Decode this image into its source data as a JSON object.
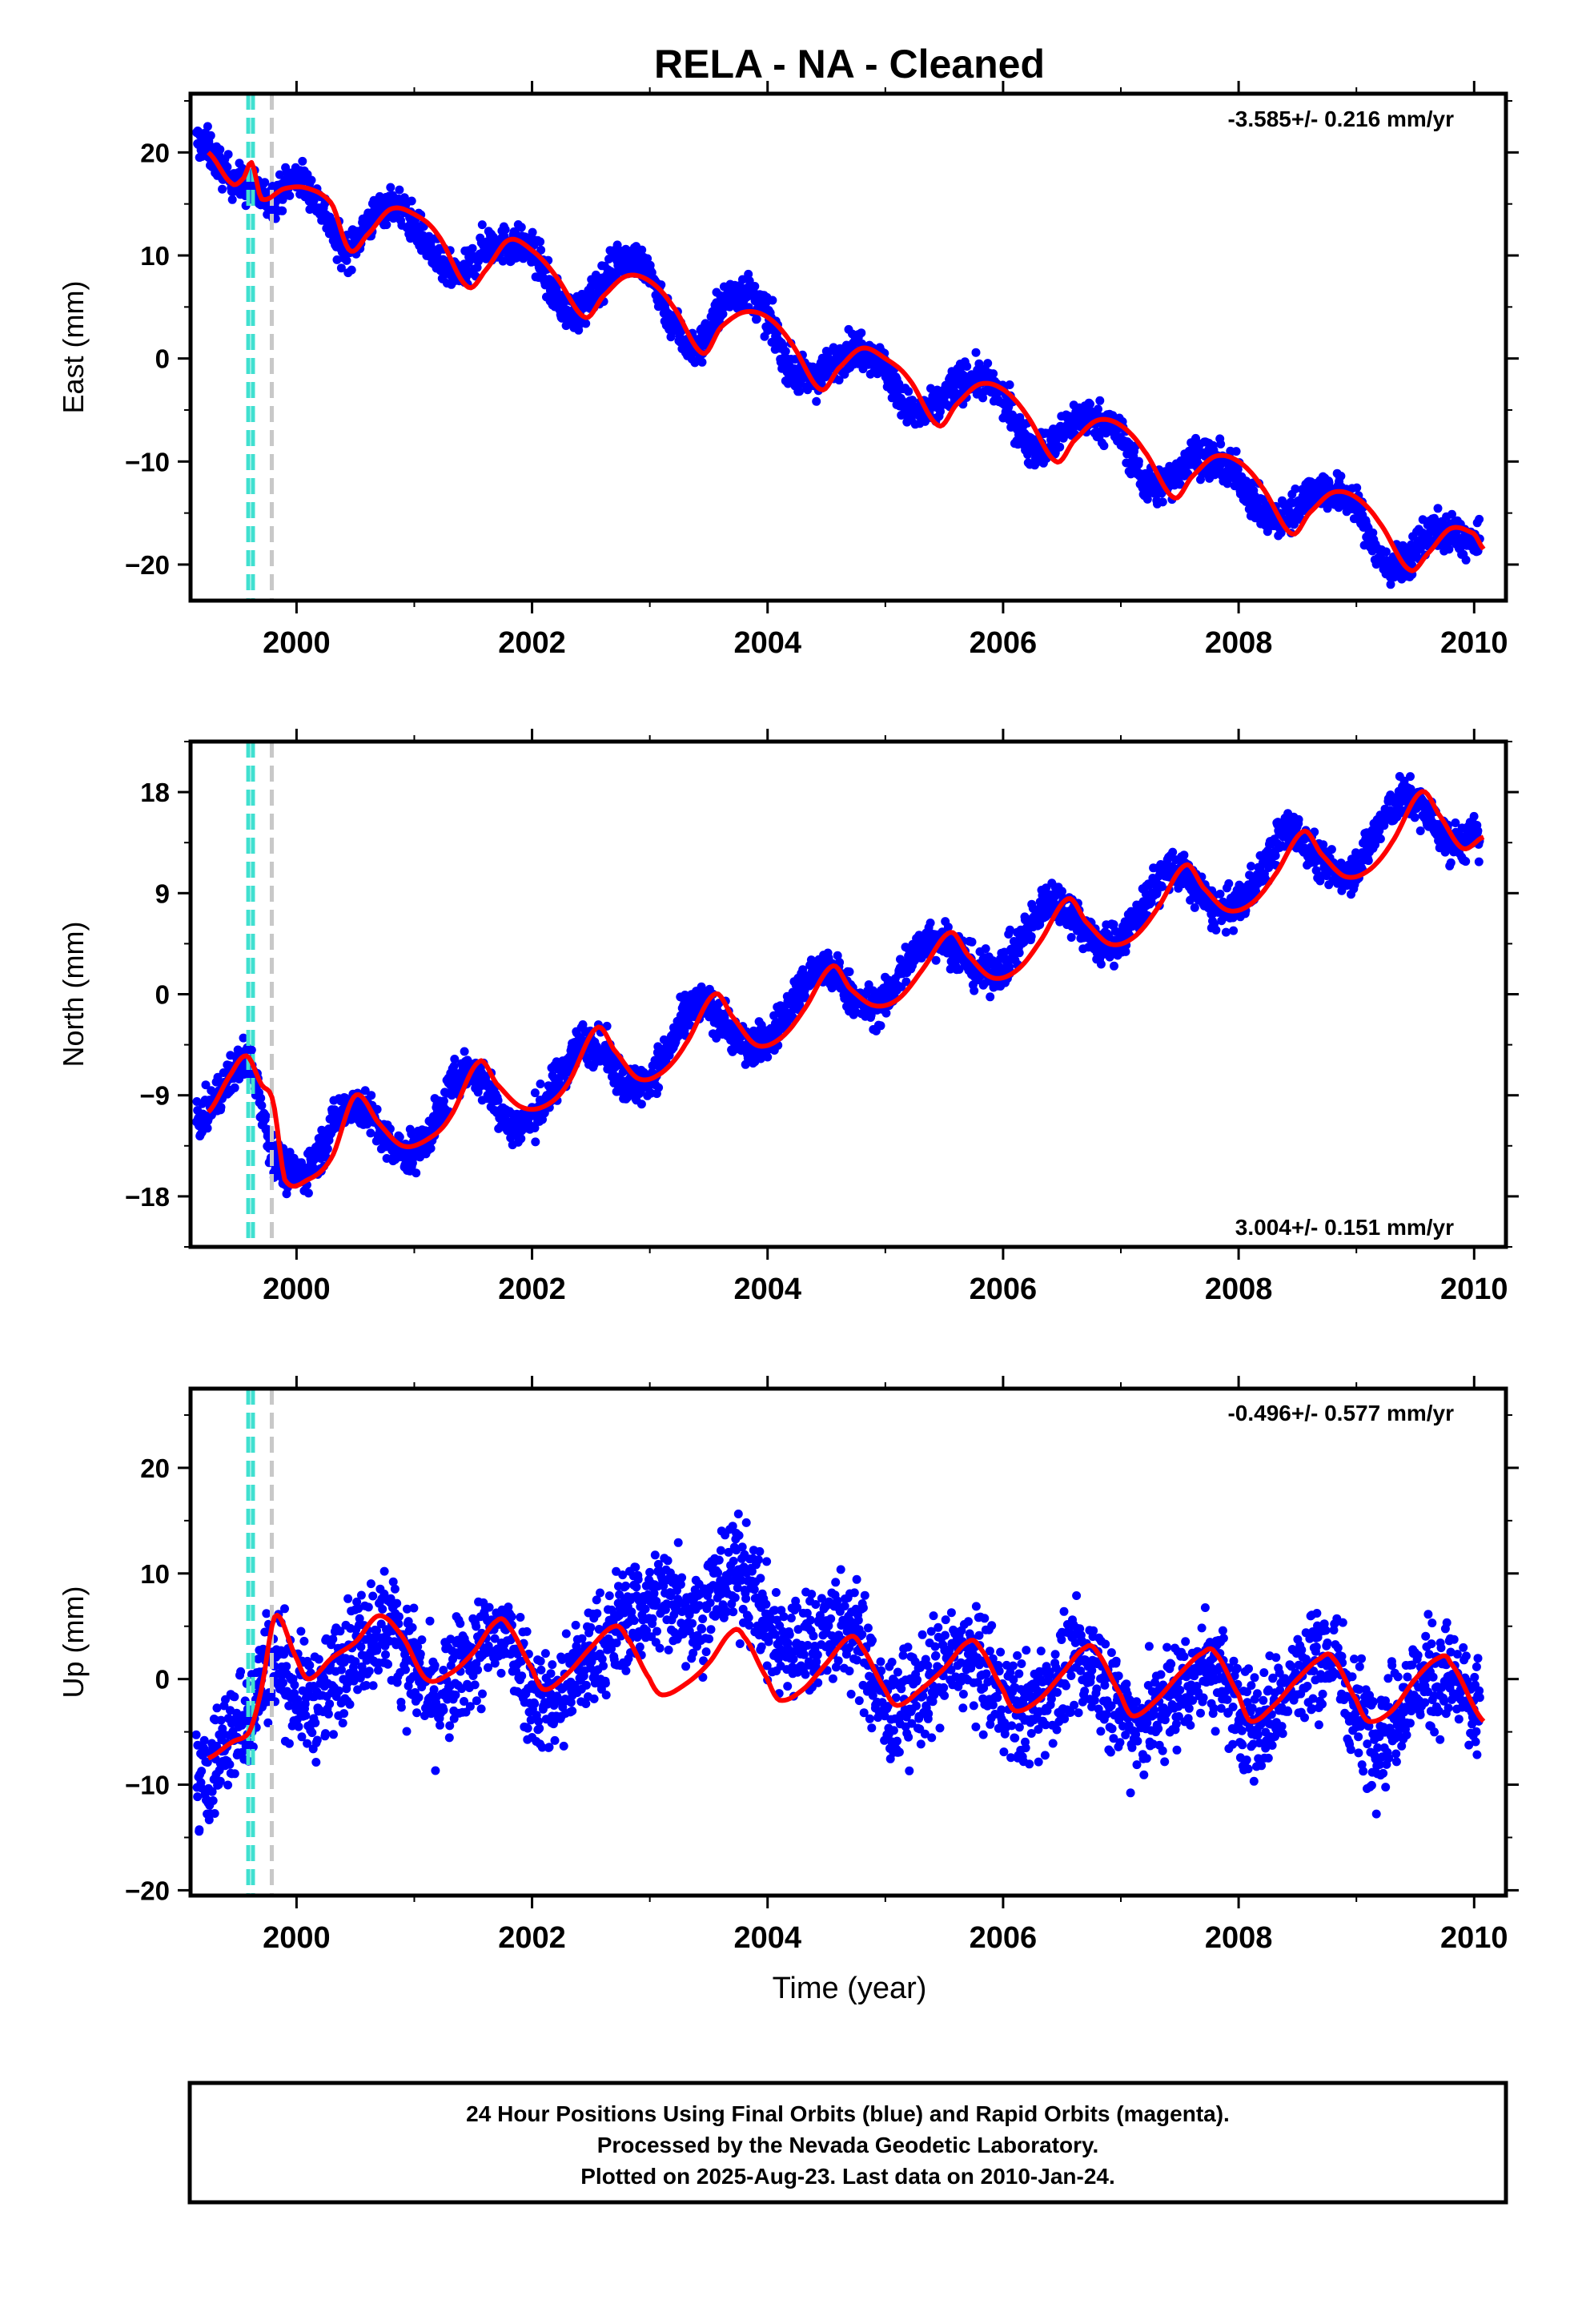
{
  "chart_data": [
    {
      "type": "scatter",
      "title": "RELA  - NA - Cleaned",
      "ylabel": "East (mm)",
      "xlabel": "",
      "rate_label": "-3.585+/- 0.216 mm/yr",
      "xlim": [
        1999.1,
        2010.27
      ],
      "ylim": [
        -23.5,
        25.7
      ],
      "xticks": [
        2000,
        2002,
        2004,
        2006,
        2008,
        2010
      ],
      "yticks": [
        -20,
        -10,
        0,
        10,
        20
      ],
      "equipment_lines": [
        {
          "x": 1999.59,
          "color": "#40e0d0"
        },
        {
          "x": 1999.63,
          "color": "#40e0d0"
        },
        {
          "x": 1999.79,
          "color": "#c8c8c8"
        }
      ],
      "series": [
        {
          "color": "#0000ff",
          "x": [
            1999.2,
            1999.4,
            1999.6,
            1999.8,
            2000.0,
            2000.2,
            2000.4,
            2000.6,
            2000.8,
            2001.0,
            2001.2,
            2001.4,
            2001.6,
            2001.8,
            2002.0,
            2002.2,
            2002.4,
            2002.6,
            2002.8,
            2003.0,
            2003.2,
            2003.4,
            2003.6,
            2003.8,
            2004.0,
            2004.2,
            2004.4,
            2004.6,
            2004.8,
            2005.0,
            2005.2,
            2005.4,
            2005.6,
            2005.8,
            2006.0,
            2006.2,
            2006.4,
            2006.6,
            2006.8,
            2007.0,
            2007.2,
            2007.4,
            2007.6,
            2007.8,
            2008.0,
            2008.2,
            2008.4,
            2008.6,
            2008.8,
            2009.0,
            2009.2,
            2009.4,
            2009.6,
            2009.8,
            2010.0
          ],
          "values": [
            21.0,
            18.0,
            16.5,
            15.5,
            17.5,
            15.0,
            10.5,
            13.0,
            15.0,
            13.0,
            9.5,
            8.0,
            11.0,
            11.0,
            10.5,
            6.0,
            4.5,
            7.5,
            10.0,
            8.0,
            3.5,
            1.0,
            5.0,
            6.5,
            4.0,
            -1.0,
            -2.0,
            0.0,
            1.0,
            -1.0,
            -5.0,
            -5.0,
            -2.5,
            -2.0,
            -4.0,
            -8.0,
            -8.5,
            -6.0,
            -6.0,
            -7.5,
            -12.0,
            -12.0,
            -9.5,
            -10.0,
            -11.5,
            -15.0,
            -15.5,
            -13.0,
            -13.0,
            -14.5,
            -19.5,
            -20.0,
            -17.0,
            -17.0,
            -18.0
          ]
        },
        {
          "color": "#ff0000",
          "x": [
            1999.25,
            1999.45,
            1999.55,
            1999.62,
            1999.7,
            1999.9,
            2000.1,
            2000.3,
            2000.45,
            2000.6,
            2000.8,
            2001.0,
            2001.2,
            2001.45,
            2001.6,
            2001.8,
            2002.0,
            2002.2,
            2002.45,
            2002.6,
            2002.8,
            2003.0,
            2003.2,
            2003.45,
            2003.6,
            2003.8,
            2004.0,
            2004.2,
            2004.45,
            2004.6,
            2004.8,
            2005.0,
            2005.2,
            2005.45,
            2005.6,
            2005.8,
            2006.0,
            2006.2,
            2006.45,
            2006.6,
            2006.8,
            2007.0,
            2007.2,
            2007.45,
            2007.6,
            2007.8,
            2008.0,
            2008.2,
            2008.45,
            2008.6,
            2008.8,
            2009.0,
            2009.2,
            2009.45,
            2009.6,
            2009.8,
            2010.0,
            2010.08
          ],
          "values": [
            20.0,
            17.0,
            17.5,
            19.0,
            15.5,
            16.5,
            16.5,
            15.0,
            10.5,
            12.0,
            14.5,
            14.0,
            12.0,
            7.0,
            8.5,
            11.5,
            10.5,
            8.0,
            4.0,
            6.0,
            8.0,
            7.5,
            5.0,
            0.5,
            3.0,
            4.5,
            4.0,
            1.5,
            -3.0,
            -1.0,
            1.0,
            0.0,
            -2.0,
            -6.5,
            -4.5,
            -2.5,
            -3.0,
            -5.5,
            -10.0,
            -8.0,
            -6.0,
            -6.5,
            -9.0,
            -13.5,
            -11.5,
            -9.5,
            -10.0,
            -12.5,
            -17.0,
            -15.0,
            -13.0,
            -13.5,
            -16.0,
            -20.5,
            -19.0,
            -16.5,
            -17.0,
            -18.5
          ]
        }
      ]
    },
    {
      "type": "scatter",
      "title": "",
      "ylabel": "North (mm)",
      "xlabel": "",
      "rate_label": "3.004+/- 0.151 mm/yr",
      "xlim": [
        1999.1,
        2010.27
      ],
      "ylim": [
        -22.5,
        22.5
      ],
      "xticks": [
        2000,
        2002,
        2004,
        2006,
        2008,
        2010
      ],
      "yticks": [
        -18,
        -9,
        0,
        9,
        18
      ],
      "equipment_lines": [
        {
          "x": 1999.59,
          "color": "#40e0d0"
        },
        {
          "x": 1999.63,
          "color": "#40e0d0"
        },
        {
          "x": 1999.79,
          "color": "#c8c8c8"
        }
      ],
      "series": [
        {
          "color": "#0000ff",
          "x": [
            1999.2,
            1999.4,
            1999.6,
            1999.8,
            2000.0,
            2000.2,
            2000.4,
            2000.6,
            2000.8,
            2001.0,
            2001.2,
            2001.4,
            2001.6,
            2001.8,
            2002.0,
            2002.2,
            2002.4,
            2002.6,
            2002.8,
            2003.0,
            2003.2,
            2003.4,
            2003.6,
            2003.8,
            2004.0,
            2004.2,
            2004.4,
            2004.6,
            2004.8,
            2005.0,
            2005.2,
            2005.4,
            2005.6,
            2005.8,
            2006.0,
            2006.2,
            2006.4,
            2006.6,
            2006.8,
            2007.0,
            2007.2,
            2007.4,
            2007.6,
            2007.8,
            2008.0,
            2008.2,
            2008.4,
            2008.6,
            2008.8,
            2009.0,
            2009.2,
            2009.4,
            2009.6,
            2009.8,
            2010.0
          ],
          "values": [
            -11.0,
            -8.0,
            -6.0,
            -14.0,
            -16.0,
            -14.0,
            -10.0,
            -10.5,
            -13.5,
            -14.0,
            -11.0,
            -7.0,
            -8.0,
            -11.5,
            -11.0,
            -8.0,
            -4.5,
            -5.0,
            -8.0,
            -7.5,
            -4.0,
            -1.0,
            -2.0,
            -4.5,
            -4.0,
            -1.0,
            2.0,
            1.5,
            -1.0,
            -0.5,
            3.0,
            5.0,
            4.0,
            2.0,
            2.5,
            5.5,
            8.5,
            7.0,
            4.5,
            5.0,
            8.0,
            11.0,
            10.0,
            7.5,
            8.0,
            11.0,
            14.5,
            13.0,
            11.0,
            11.5,
            15.0,
            17.5,
            16.0,
            13.5,
            14.0
          ]
        },
        {
          "color": "#ff0000",
          "x": [
            1999.25,
            1999.45,
            1999.58,
            1999.7,
            1999.8,
            1999.9,
            2000.1,
            2000.3,
            2000.5,
            2000.7,
            2000.9,
            2001.1,
            2001.3,
            2001.55,
            2001.7,
            2001.9,
            2002.1,
            2002.3,
            2002.55,
            2002.7,
            2002.9,
            2003.1,
            2003.3,
            2003.55,
            2003.7,
            2003.9,
            2004.1,
            2004.3,
            2004.55,
            2004.7,
            2004.9,
            2005.1,
            2005.3,
            2005.55,
            2005.7,
            2005.9,
            2006.1,
            2006.3,
            2006.55,
            2006.7,
            2006.9,
            2007.1,
            2007.3,
            2007.55,
            2007.7,
            2007.9,
            2008.1,
            2008.3,
            2008.55,
            2008.7,
            2008.9,
            2009.1,
            2009.3,
            2009.55,
            2009.7,
            2009.9,
            2010.08
          ],
          "values": [
            -10.5,
            -7.0,
            -5.5,
            -8.0,
            -9.5,
            -16.5,
            -16.5,
            -14.5,
            -9.0,
            -11.5,
            -13.5,
            -13.0,
            -11.0,
            -6.0,
            -8.0,
            -10.0,
            -10.0,
            -8.0,
            -3.0,
            -5.0,
            -7.5,
            -7.0,
            -4.5,
            0.0,
            -2.0,
            -4.5,
            -4.0,
            -1.5,
            2.5,
            0.5,
            -1.0,
            -0.5,
            2.0,
            5.5,
            3.5,
            1.5,
            2.0,
            4.5,
            8.5,
            6.5,
            4.5,
            5.0,
            7.5,
            11.5,
            9.5,
            7.5,
            8.0,
            10.5,
            14.5,
            12.5,
            10.5,
            11.0,
            13.5,
            18.0,
            16.0,
            13.0,
            14.0
          ]
        }
      ]
    },
    {
      "type": "scatter",
      "title": "",
      "ylabel": "Up (mm)",
      "xlabel": "Time (year)",
      "rate_label": "-0.496+/- 0.577 mm/yr",
      "xlim": [
        1999.1,
        2010.27
      ],
      "ylim": [
        -20.5,
        27.5
      ],
      "xticks": [
        2000,
        2002,
        2004,
        2006,
        2008,
        2010
      ],
      "yticks": [
        -20,
        -10,
        0,
        10,
        20
      ],
      "equipment_lines": [
        {
          "x": 1999.59,
          "color": "#40e0d0"
        },
        {
          "x": 1999.63,
          "color": "#40e0d0"
        },
        {
          "x": 1999.79,
          "color": "#c8c8c8"
        }
      ],
      "series": [
        {
          "color": "#0000ff",
          "x": [
            1999.2,
            1999.4,
            1999.6,
            1999.8,
            2000.0,
            2000.2,
            2000.4,
            2000.6,
            2000.8,
            2001.0,
            2001.2,
            2001.4,
            2001.6,
            2001.8,
            2002.0,
            2002.2,
            2002.4,
            2002.6,
            2002.8,
            2003.0,
            2003.2,
            2003.4,
            2003.6,
            2003.8,
            2004.0,
            2004.2,
            2004.4,
            2004.6,
            2004.8,
            2005.0,
            2005.2,
            2005.4,
            2005.6,
            2005.8,
            2006.0,
            2006.2,
            2006.4,
            2006.6,
            2006.8,
            2007.0,
            2007.2,
            2007.4,
            2007.6,
            2007.8,
            2008.0,
            2008.2,
            2008.4,
            2008.6,
            2008.8,
            2009.0,
            2009.2,
            2009.4,
            2009.6,
            2009.8,
            2010.0
          ],
          "values": [
            -10.0,
            -6.0,
            -3.0,
            2.0,
            -1.0,
            -2.0,
            2.0,
            4.0,
            5.0,
            1.0,
            -2.0,
            1.0,
            3.0,
            4.0,
            -1.0,
            -2.0,
            1.0,
            3.0,
            6.0,
            7.0,
            8.0,
            6.0,
            9.0,
            10.0,
            5.0,
            3.0,
            4.0,
            5.0,
            3.0,
            -3.0,
            -2.0,
            0.0,
            2.0,
            1.0,
            -2.0,
            -3.0,
            -1.0,
            1.0,
            1.0,
            -3.0,
            -4.0,
            -2.0,
            0.0,
            1.0,
            -3.0,
            -4.0,
            -1.0,
            1.0,
            2.0,
            -3.0,
            -5.0,
            -2.0,
            0.0,
            0.0,
            -3.0
          ]
        },
        {
          "color": "#ff0000",
          "x": [
            1999.25,
            1999.45,
            1999.6,
            1999.7,
            1999.82,
            2000.0,
            2000.1,
            2000.3,
            2000.5,
            2000.7,
            2000.9,
            2001.1,
            2001.3,
            2001.5,
            2001.7,
            2001.8,
            2002.0,
            2002.1,
            2002.3,
            2002.5,
            2002.7,
            2002.8,
            2003.0,
            2003.1,
            2003.3,
            2003.5,
            2003.7,
            2003.8,
            2004.0,
            2004.1,
            2004.3,
            2004.5,
            2004.7,
            2004.8,
            2005.0,
            2005.1,
            2005.3,
            2005.5,
            2005.7,
            2005.8,
            2006.0,
            2006.1,
            2006.3,
            2006.5,
            2006.7,
            2006.8,
            2007.0,
            2007.1,
            2007.3,
            2007.5,
            2007.7,
            2007.8,
            2008.0,
            2008.1,
            2008.3,
            2008.5,
            2008.7,
            2008.8,
            2009.0,
            2009.1,
            2009.3,
            2009.5,
            2009.7,
            2009.8,
            2010.08
          ],
          "values": [
            -7.5,
            -6.0,
            -5.0,
            -1.0,
            6.0,
            2.0,
            0.0,
            2.0,
            3.5,
            6.0,
            4.0,
            0.0,
            0.5,
            2.5,
            5.5,
            5.0,
            1.0,
            -1.0,
            0.5,
            3.0,
            5.0,
            4.0,
            0.0,
            -1.5,
            -0.5,
            1.5,
            4.5,
            4.0,
            0.0,
            -2.0,
            -1.0,
            1.5,
            4.0,
            3.0,
            -1.0,
            -2.5,
            -1.0,
            1.0,
            3.5,
            3.0,
            -1.0,
            -3.0,
            -2.0,
            0.5,
            3.0,
            2.5,
            -1.5,
            -3.5,
            -2.0,
            0.5,
            2.5,
            2.5,
            -1.5,
            -4.0,
            -2.5,
            0.0,
            2.0,
            2.0,
            -2.0,
            -4.0,
            -3.0,
            0.0,
            2.0,
            1.5,
            -4.0
          ]
        }
      ]
    }
  ],
  "footer": {
    "line1": "24 Hour Positions Using Final Orbits (blue) and Rapid Orbits (magenta).",
    "line2": "Processed by the Nevada Geodetic Laboratory.",
    "line3": "Plotted on 2025-Aug-23. Last data on 2010-Jan-24."
  }
}
